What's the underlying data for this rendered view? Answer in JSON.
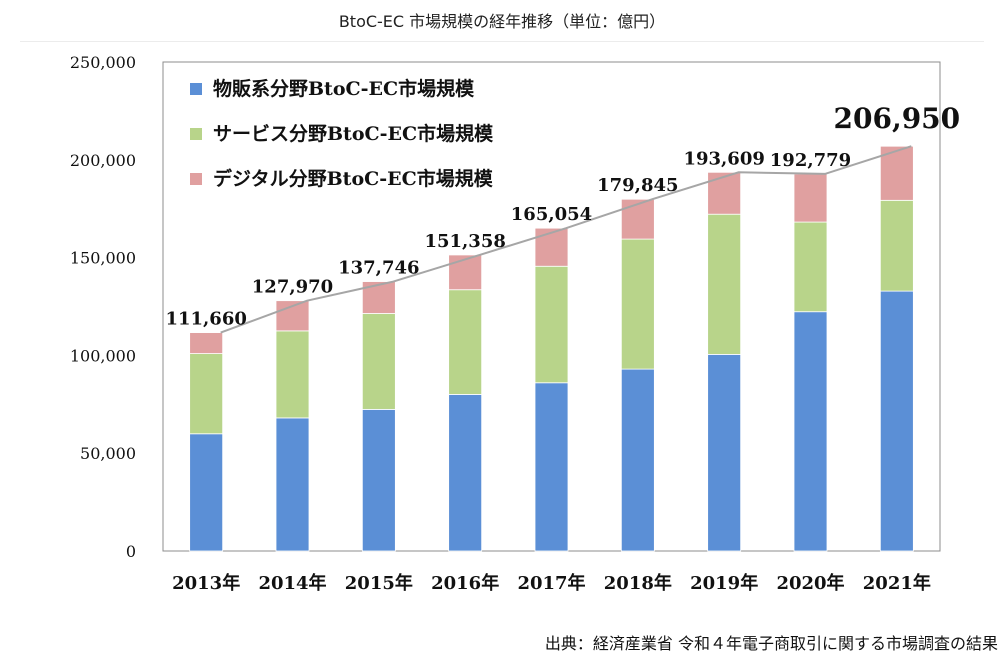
{
  "page": {
    "title": "BtoC-EC 市場規模の経年推移（単位：億円）",
    "source": "出典：経済産業省 令和４年電子商取引に関する市場調査の結果"
  },
  "chart_data": {
    "type": "bar",
    "stacked": true,
    "categories": [
      "2013年",
      "2014年",
      "2015年",
      "2016年",
      "2017年",
      "2018年",
      "2019年",
      "2020年",
      "2021年"
    ],
    "series": [
      {
        "name": "物販系分野BtoC-EC市場規模",
        "color": "#5b8fd6",
        "values": [
          59931,
          68043,
          72398,
          80043,
          86008,
          92992,
          100515,
          122333,
          132865
        ]
      },
      {
        "name": "サービス分野BtoC-EC市場規模",
        "color": "#b8d48a",
        "values": [
          41000,
          44500,
          49014,
          53532,
          59568,
          66471,
          71672,
          45832,
          46424
        ]
      },
      {
        "name": "デジタル分野BtoC-EC市場規模",
        "color": "#e0a0a0",
        "values": [
          10729,
          15427,
          16334,
          17783,
          19478,
          20382,
          21422,
          24614,
          27661
        ]
      }
    ],
    "totals": [
      111660,
      127970,
      137746,
      151358,
      165054,
      179845,
      193609,
      192779,
      206950
    ],
    "total_labels": [
      "111,660",
      "127,970",
      "137,746",
      "151,358",
      "165,054",
      "179,845",
      "193,609",
      "192,779",
      "206,950"
    ],
    "y_ticks": [
      0,
      50000,
      100000,
      150000,
      200000,
      250000
    ],
    "y_tick_labels": [
      "0",
      "50,000",
      "100,000",
      "150,000",
      "200,000",
      "250,000"
    ],
    "ylim": [
      0,
      250000
    ],
    "legend_position": "top-left",
    "grid": false,
    "total_line_color": "#a6a6a6"
  }
}
